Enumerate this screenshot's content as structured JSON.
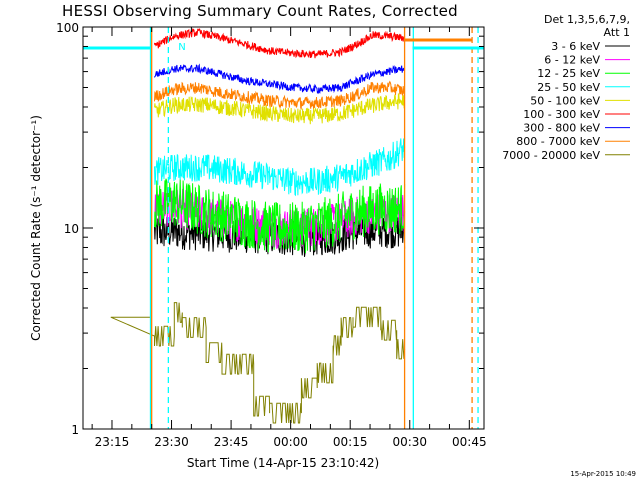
{
  "chart_data": {
    "type": "line",
    "title": "HESSI Observing Summary Count Rates, Corrected",
    "xlabel": "Start Time (14-Apr-15 23:10:42)",
    "ylabel": "Corrected Count Rate (s⁻¹ detector⁻¹)",
    "yscale": "log",
    "ylim": [
      1,
      100
    ],
    "xlim_minutes": [
      -3,
      98
    ],
    "x_units": "minutes after 23:10:42",
    "x_ticks": [
      {
        "minute": 4.3,
        "label": "23:15"
      },
      {
        "minute": 19.3,
        "label": "23:30"
      },
      {
        "minute": 34.3,
        "label": "23:45"
      },
      {
        "minute": 49.3,
        "label": "00:00"
      },
      {
        "minute": 64.3,
        "label": "00:15"
      },
      {
        "minute": 79.3,
        "label": "00:30"
      },
      {
        "minute": 94.3,
        "label": "00:45"
      }
    ],
    "y_tick_labels": [
      {
        "value": 1,
        "label": "1"
      },
      {
        "value": 10,
        "label": "10"
      },
      {
        "value": 100,
        "label": "100"
      }
    ],
    "legend_header": [
      "Det 1,3,5,6,7,9,",
      "Att 1"
    ],
    "legend_position": "right",
    "corner_timestamp": "15-Apr-2015 10:49",
    "flag_label": "N",
    "flag_label_minute": 21,
    "night_intervals": [
      {
        "x1": -3,
        "x2": 14,
        "color": "#00ffff"
      },
      {
        "x1": 78,
        "x2": 95,
        "color": "#ff8000"
      },
      {
        "x1": 80,
        "x2": 98,
        "color": "#00ffff"
      }
    ],
    "vertical_markers": [
      {
        "minute": 14,
        "color": "#00ffff",
        "style": "solid"
      },
      {
        "minute": 14.3,
        "color": "#ff8000",
        "style": "solid"
      },
      {
        "minute": 18.5,
        "color": "#00ffff",
        "style": "dashed"
      },
      {
        "minute": 78,
        "color": "#ff8000",
        "style": "solid"
      },
      {
        "minute": 80.2,
        "color": "#00ffff",
        "style": "solid"
      },
      {
        "minute": 95,
        "color": "#ff8000",
        "style": "dashed"
      },
      {
        "minute": 96.5,
        "color": "#00ffff",
        "style": "dashed"
      }
    ],
    "series": [
      {
        "name": "3 - 6 keV",
        "color": "#000000",
        "noise": 0.09,
        "points": [
          [
            15,
            9.5
          ],
          [
            20,
            9.6
          ],
          [
            28,
            9.4
          ],
          [
            36,
            9.2
          ],
          [
            44,
            9.0
          ],
          [
            52,
            8.8
          ],
          [
            60,
            9.0
          ],
          [
            66,
            9.6
          ],
          [
            72,
            9.8
          ],
          [
            78,
            9.6
          ]
        ]
      },
      {
        "name": "6 - 12 keV",
        "color": "#ff00ff",
        "noise": 0.1,
        "points": [
          [
            15,
            12.5
          ],
          [
            20,
            12.8
          ],
          [
            28,
            11.5
          ],
          [
            36,
            10.8
          ],
          [
            44,
            10.0
          ],
          [
            52,
            10.0
          ],
          [
            60,
            10.5
          ],
          [
            66,
            11.5
          ],
          [
            72,
            12.0
          ],
          [
            78,
            12.0
          ]
        ]
      },
      {
        "name": "12 - 25 keV",
        "color": "#00ff00",
        "noise": 0.13,
        "points": [
          [
            15,
            13.0
          ],
          [
            20,
            13.5
          ],
          [
            28,
            12.0
          ],
          [
            36,
            11.0
          ],
          [
            44,
            10.0
          ],
          [
            52,
            10.0
          ],
          [
            60,
            10.8
          ],
          [
            66,
            12.0
          ],
          [
            72,
            12.5
          ],
          [
            78,
            12.5
          ]
        ]
      },
      {
        "name": "25 - 50 keV",
        "color": "#00ffff",
        "noise": 0.07,
        "points": [
          [
            15,
            19
          ],
          [
            20,
            20
          ],
          [
            28,
            20
          ],
          [
            36,
            19
          ],
          [
            44,
            18
          ],
          [
            50,
            17
          ],
          [
            56,
            17
          ],
          [
            62,
            18
          ],
          [
            68,
            20
          ],
          [
            74,
            22
          ],
          [
            78,
            25
          ]
        ]
      },
      {
        "name": "50 - 100 keV",
        "color": "#e0e000",
        "noise": 0.04,
        "points": [
          [
            15,
            38
          ],
          [
            20,
            41
          ],
          [
            28,
            41
          ],
          [
            36,
            39
          ],
          [
            44,
            37
          ],
          [
            50,
            36
          ],
          [
            56,
            36
          ],
          [
            62,
            37
          ],
          [
            68,
            40
          ],
          [
            74,
            42
          ],
          [
            78,
            43
          ]
        ]
      },
      {
        "name": "100 - 300 keV",
        "color": "#ff0000",
        "noise": 0.02,
        "points": [
          [
            15,
            80
          ],
          [
            20,
            90
          ],
          [
            26,
            94
          ],
          [
            32,
            88
          ],
          [
            38,
            82
          ],
          [
            44,
            76
          ],
          [
            50,
            74
          ],
          [
            56,
            73
          ],
          [
            62,
            75
          ],
          [
            66,
            82
          ],
          [
            70,
            91
          ],
          [
            74,
            90
          ],
          [
            78,
            88
          ]
        ]
      },
      {
        "name": "300 - 800 keV",
        "color": "#0000ff",
        "noise": 0.02,
        "points": [
          [
            15,
            58
          ],
          [
            20,
            62
          ],
          [
            26,
            62
          ],
          [
            32,
            58
          ],
          [
            38,
            54
          ],
          [
            44,
            52
          ],
          [
            50,
            50
          ],
          [
            56,
            49
          ],
          [
            62,
            50
          ],
          [
            66,
            54
          ],
          [
            70,
            58
          ],
          [
            74,
            60
          ],
          [
            78,
            62
          ]
        ]
      },
      {
        "name": "800 - 7000 keV",
        "color": "#ff8000",
        "noise": 0.03,
        "points": [
          [
            15,
            45
          ],
          [
            20,
            49
          ],
          [
            26,
            50
          ],
          [
            32,
            47
          ],
          [
            38,
            45
          ],
          [
            44,
            43
          ],
          [
            50,
            42
          ],
          [
            56,
            42
          ],
          [
            62,
            43
          ],
          [
            66,
            46
          ],
          [
            70,
            50
          ],
          [
            74,
            50
          ],
          [
            78,
            48
          ]
        ]
      },
      {
        "name": "7000 - 20000 keV",
        "color": "#808000",
        "noise": 0,
        "steps": [
          [
            14,
            4,
            3.6
          ],
          [
            15,
            20,
            2.9
          ],
          [
            20,
            22,
            3.8
          ],
          [
            22,
            28,
            3.2
          ],
          [
            28,
            32,
            2.4
          ],
          [
            32,
            40,
            2.1
          ],
          [
            40,
            44,
            1.3
          ],
          [
            44,
            52,
            1.2
          ],
          [
            52,
            56,
            1.6
          ],
          [
            56,
            60,
            1.9
          ],
          [
            60,
            62,
            2.6
          ],
          [
            62,
            65,
            3.2
          ],
          [
            65,
            72,
            3.6
          ],
          [
            72,
            76,
            3.1
          ],
          [
            76,
            78,
            2.5
          ]
        ]
      }
    ]
  }
}
